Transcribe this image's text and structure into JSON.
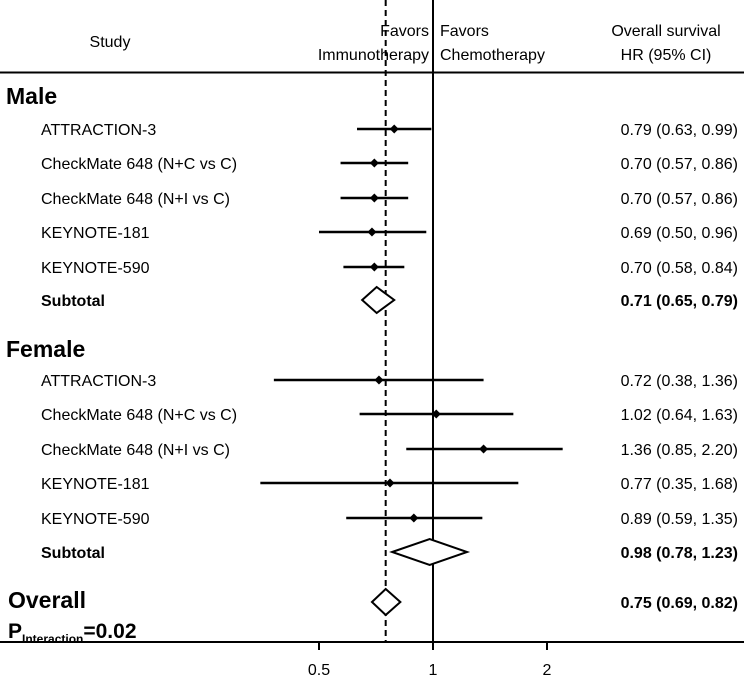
{
  "chart_data": {
    "type": "forest",
    "header": {
      "study": "Study",
      "favors_left": [
        "Favors",
        "Immunotherapy"
      ],
      "favors_right": [
        "Favors",
        "Chemotherapy"
      ],
      "hr_title": [
        "Overall survival",
        "HR (95% CI)"
      ]
    },
    "x_scale": "log",
    "xlim": [
      0.3,
      3.0
    ],
    "x_ticks": [
      0.5,
      1,
      2
    ],
    "x_tick_labels": [
      "0.5",
      "1",
      "2"
    ],
    "reference_line": 1,
    "overall_dashed_line": 0.75,
    "groups": [
      {
        "name": "Male",
        "studies": [
          {
            "label": "ATTRACTION-3",
            "hr": 0.79,
            "lo": 0.63,
            "hi": 0.99,
            "text": "0.79 (0.63, 0.99)"
          },
          {
            "label": "CheckMate 648 (N+C vs C)",
            "hr": 0.7,
            "lo": 0.57,
            "hi": 0.86,
            "text": "0.70 (0.57, 0.86)"
          },
          {
            "label": "CheckMate 648 (N+I vs C)",
            "hr": 0.7,
            "lo": 0.57,
            "hi": 0.86,
            "text": "0.70 (0.57, 0.86)"
          },
          {
            "label": "KEYNOTE-181",
            "hr": 0.69,
            "lo": 0.5,
            "hi": 0.96,
            "text": "0.69 (0.50, 0.96)"
          },
          {
            "label": "KEYNOTE-590",
            "hr": 0.7,
            "lo": 0.58,
            "hi": 0.84,
            "text": "0.70 (0.58, 0.84)"
          }
        ],
        "subtotal": {
          "label": "Subtotal",
          "hr": 0.71,
          "lo": 0.65,
          "hi": 0.79,
          "text": "0.71 (0.65, 0.79)"
        }
      },
      {
        "name": "Female",
        "studies": [
          {
            "label": "ATTRACTION-3",
            "hr": 0.72,
            "lo": 0.38,
            "hi": 1.36,
            "text": "0.72 (0.38, 1.36)"
          },
          {
            "label": "CheckMate 648 (N+C vs C)",
            "hr": 1.02,
            "lo": 0.64,
            "hi": 1.63,
            "text": "1.02 (0.64, 1.63)"
          },
          {
            "label": "CheckMate 648 (N+I vs C)",
            "hr": 1.36,
            "lo": 0.85,
            "hi": 2.2,
            "text": "1.36 (0.85, 2.20)"
          },
          {
            "label": "KEYNOTE-181",
            "hr": 0.77,
            "lo": 0.35,
            "hi": 1.68,
            "text": "0.77 (0.35, 1.68)"
          },
          {
            "label": "KEYNOTE-590",
            "hr": 0.89,
            "lo": 0.59,
            "hi": 1.35,
            "text": "0.89 (0.59, 1.35)"
          }
        ],
        "subtotal": {
          "label": "Subtotal",
          "hr": 0.98,
          "lo": 0.78,
          "hi": 1.23,
          "text": "0.98 (0.78, 1.23)"
        }
      }
    ],
    "overall": {
      "label": "Overall",
      "hr": 0.75,
      "lo": 0.69,
      "hi": 0.82,
      "text": "0.75 (0.69, 0.82)"
    },
    "p_interaction": {
      "prefix": "P",
      "subscript": "Interaction",
      "value": "=0.02"
    }
  }
}
